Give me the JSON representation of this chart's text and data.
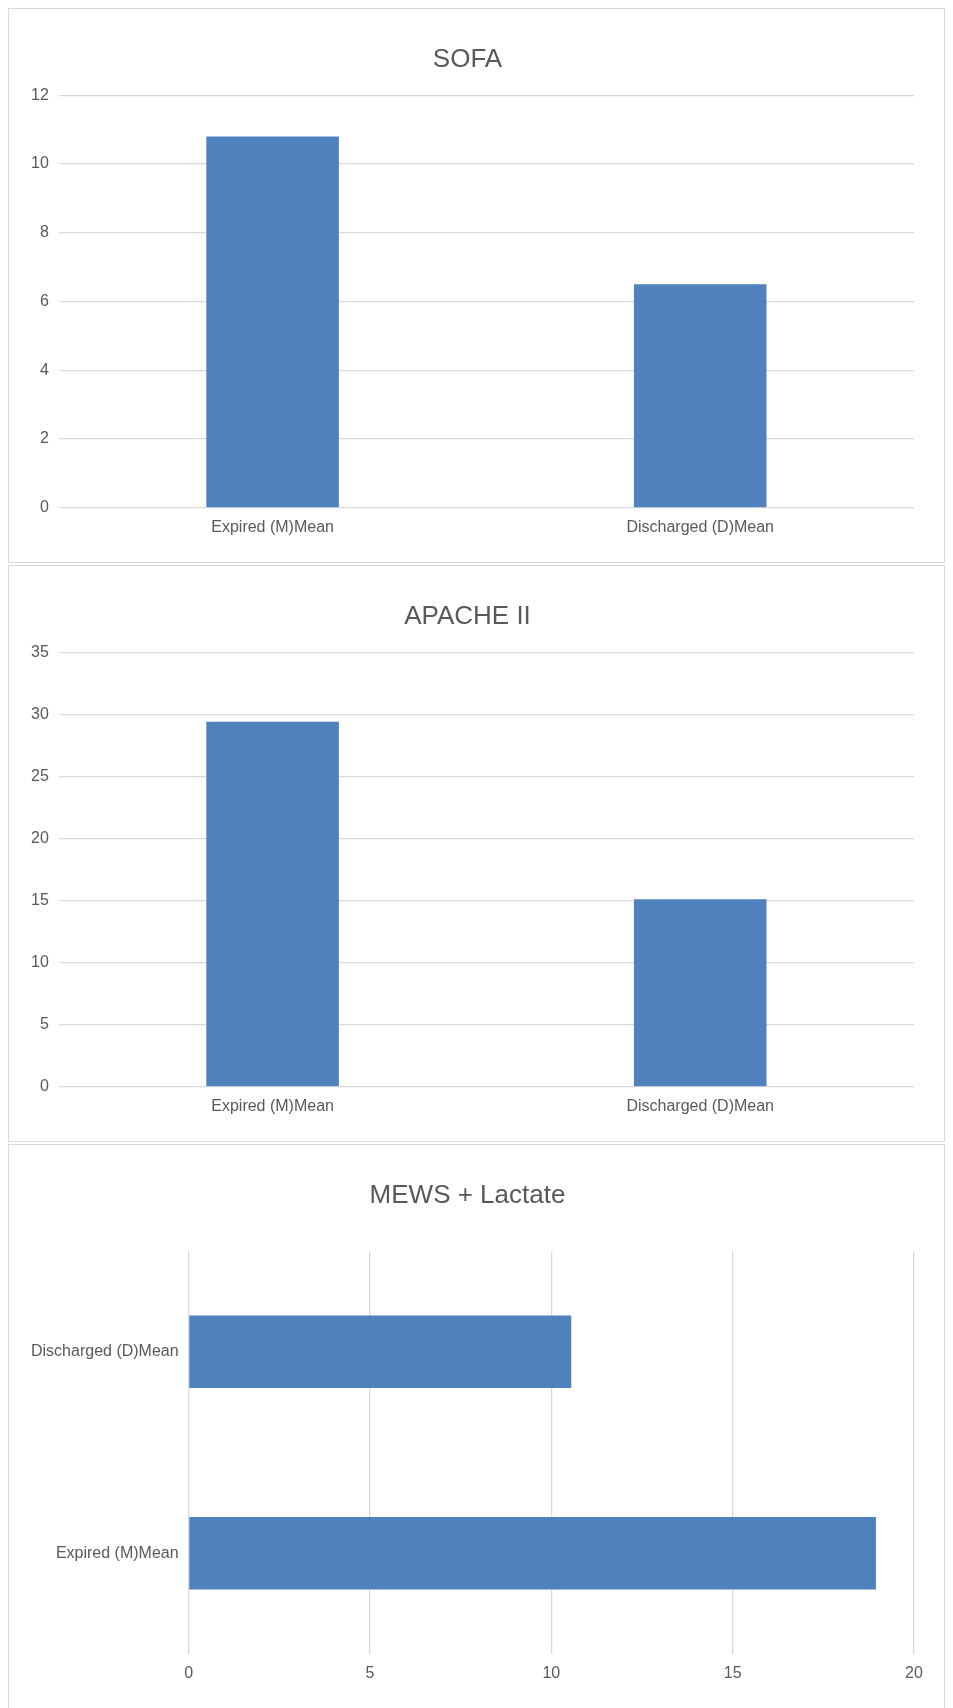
{
  "chart_data": [
    {
      "type": "bar",
      "title": "SOFA",
      "categories": [
        "Expired (M)Mean",
        "Discharged (D)Mean"
      ],
      "values": [
        10.8,
        6.5
      ],
      "color": "#4f81bd",
      "ylim": [
        0,
        12
      ],
      "yticks": [
        0,
        2,
        4,
        6,
        8,
        10,
        12
      ],
      "grid": "y"
    },
    {
      "type": "bar",
      "title": "APACHE II",
      "categories": [
        "Expired (M)Mean",
        "Discharged (D)Mean"
      ],
      "values": [
        29.4,
        15.1
      ],
      "color": "#4f81bd",
      "ylim": [
        0,
        35
      ],
      "yticks": [
        0,
        5,
        10,
        15,
        20,
        25,
        30,
        35
      ],
      "grid": "y"
    },
    {
      "type": "bar",
      "title": "MEWS + Lactate",
      "orientation": "horizontal",
      "categories": [
        "Discharged (D)Mean",
        "Expired (M)Mean"
      ],
      "values": [
        10.55,
        18.95
      ],
      "color": "#4f81bd",
      "xlim": [
        0,
        20
      ],
      "xticks": [
        0,
        5,
        10,
        15,
        20
      ],
      "grid": "x"
    }
  ]
}
